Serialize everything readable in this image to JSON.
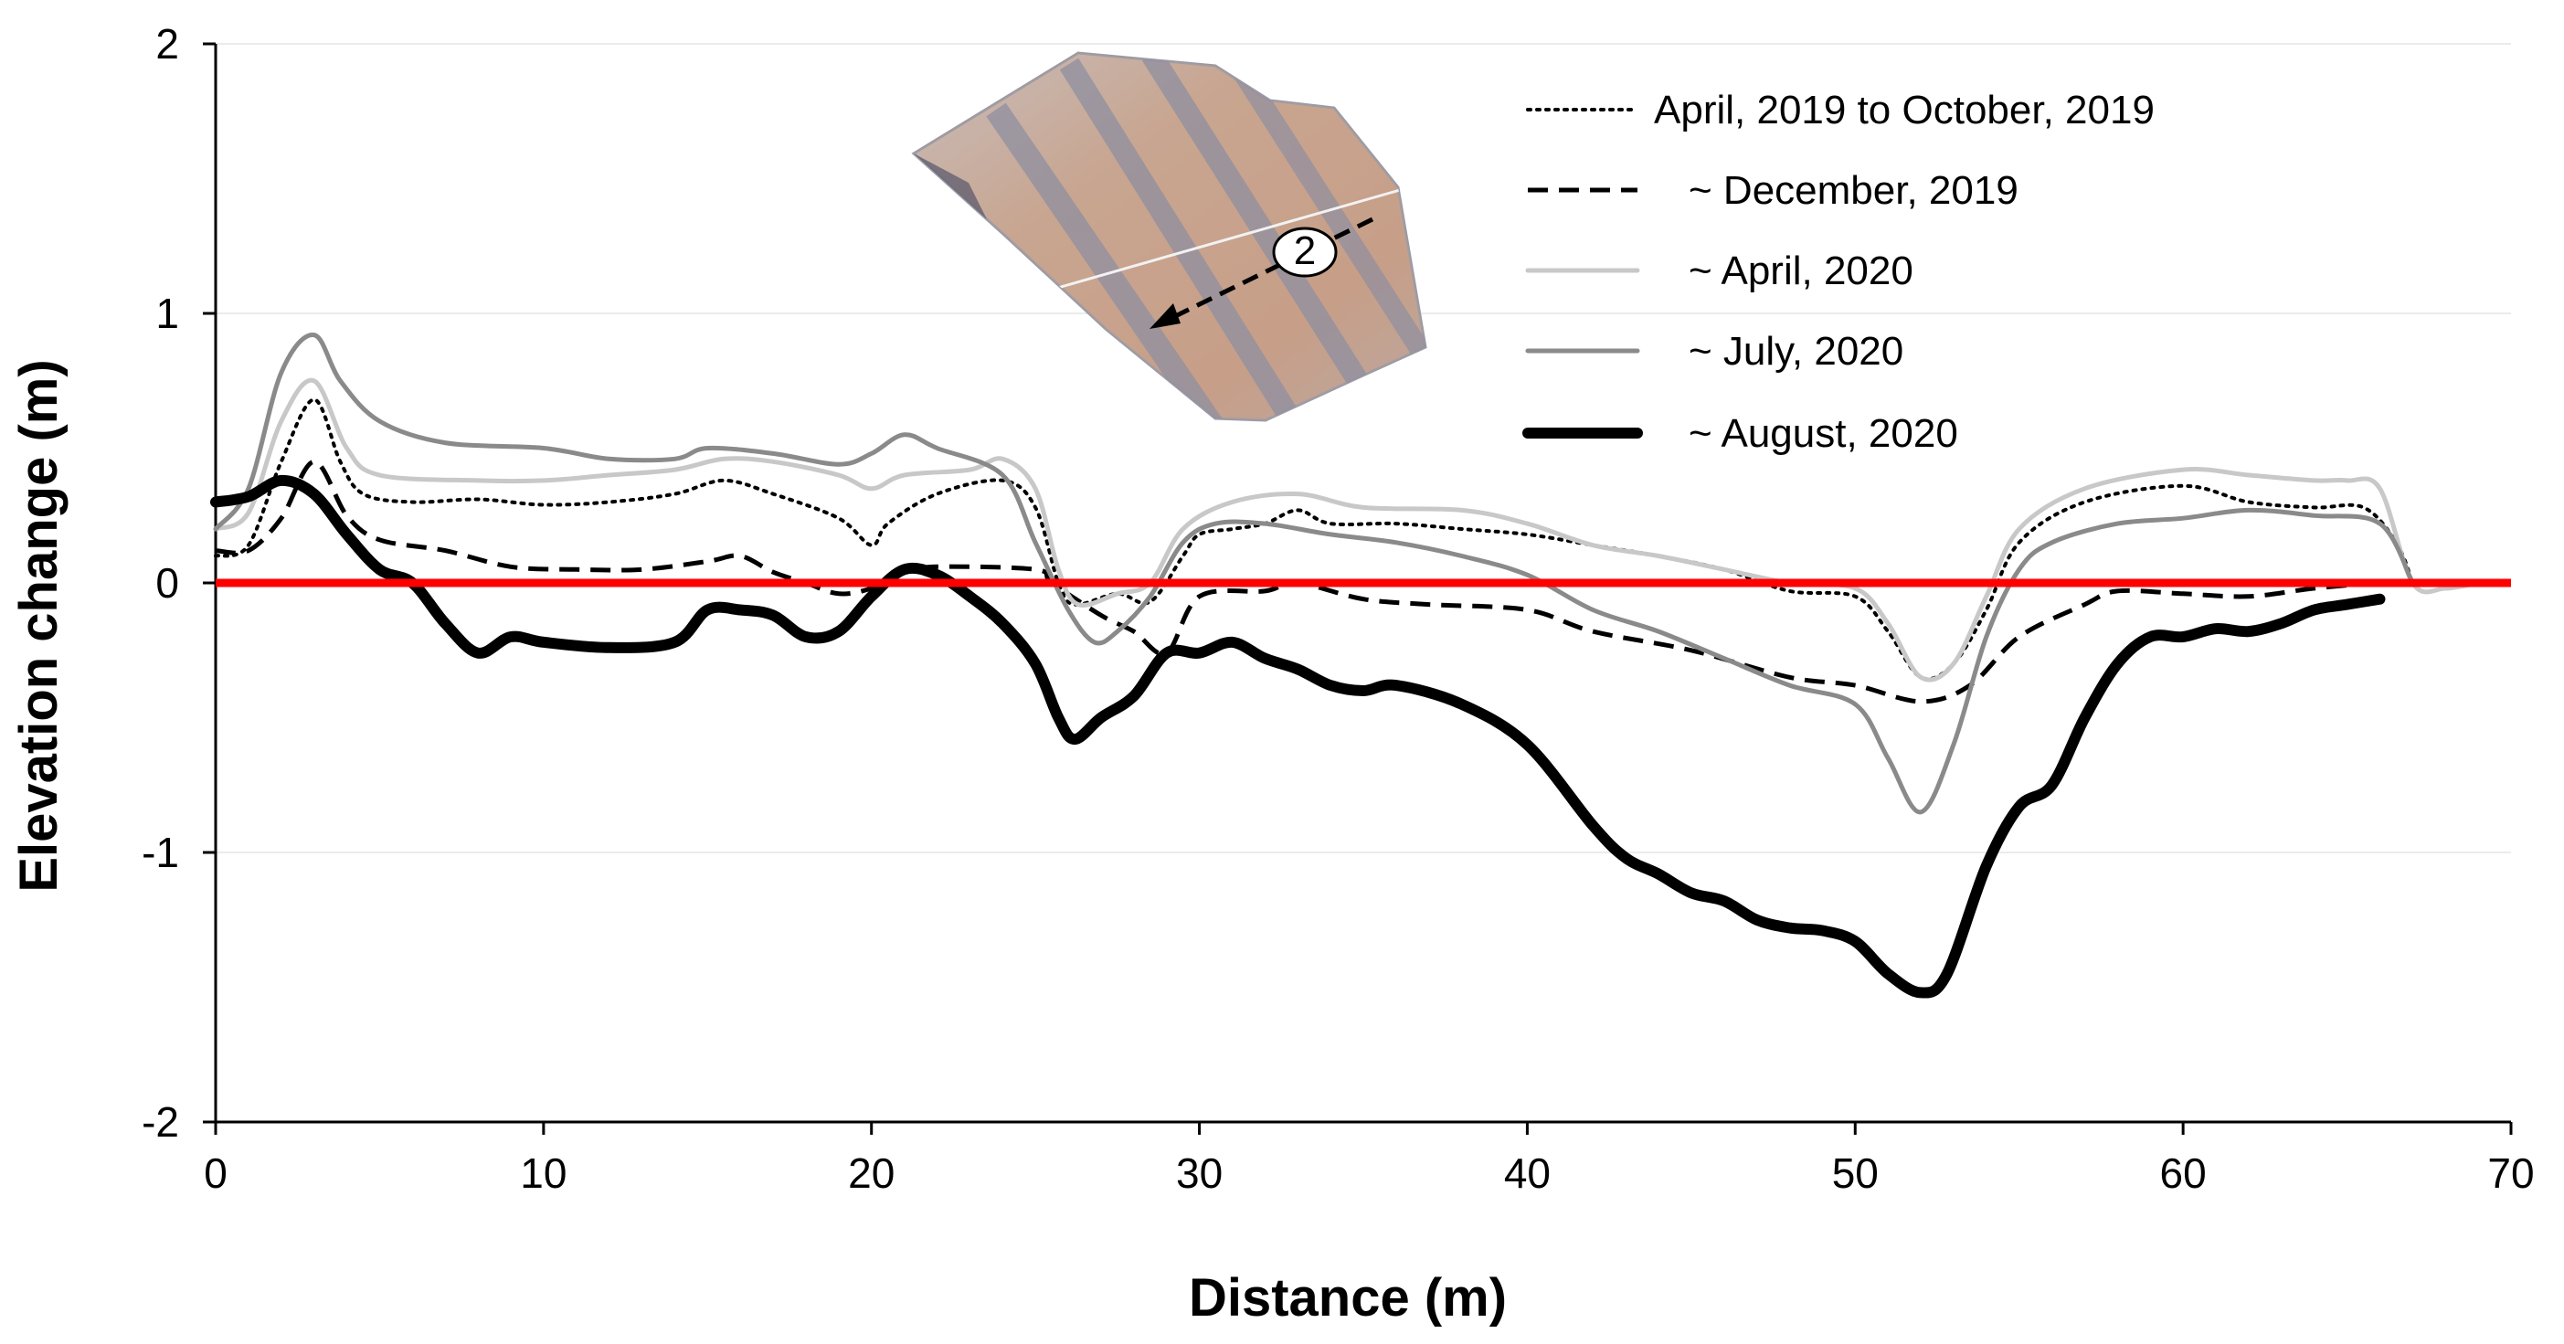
{
  "chart_data": {
    "type": "line",
    "title": "",
    "xlabel": "Distance (m)",
    "ylabel": "Elevation change (m)",
    "xlim": [
      0,
      70
    ],
    "ylim": [
      -2,
      2
    ],
    "xticks": [
      0,
      10,
      20,
      30,
      40,
      50,
      60,
      70
    ],
    "yticks": [
      2,
      1,
      0,
      -1,
      -2
    ],
    "grid": true,
    "legend_position": "top-right",
    "reference_line": {
      "y": 0,
      "color": "#ff0000"
    },
    "inset": {
      "marker_label": "2",
      "description": "aerial photo of study site with transect arrow"
    },
    "series": [
      {
        "name": "April, 2019 to October, 2019",
        "style": "dotted",
        "color": "#000000",
        "points": [
          [
            0,
            0.1
          ],
          [
            1,
            0.14
          ],
          [
            2,
            0.45
          ],
          [
            3,
            0.68
          ],
          [
            3.8,
            0.45
          ],
          [
            4.5,
            0.33
          ],
          [
            6,
            0.3
          ],
          [
            8,
            0.31
          ],
          [
            10,
            0.29
          ],
          [
            12,
            0.3
          ],
          [
            14,
            0.33
          ],
          [
            15.5,
            0.38
          ],
          [
            17,
            0.33
          ],
          [
            19,
            0.24
          ],
          [
            20,
            0.14
          ],
          [
            20.5,
            0.22
          ],
          [
            22,
            0.33
          ],
          [
            24,
            0.38
          ],
          [
            25,
            0.28
          ],
          [
            25.7,
            0.0
          ],
          [
            26.2,
            -0.08
          ],
          [
            27.5,
            -0.04
          ],
          [
            28.5,
            -0.07
          ],
          [
            29.5,
            0.1
          ],
          [
            30,
            0.18
          ],
          [
            31,
            0.2
          ],
          [
            32,
            0.22
          ],
          [
            33,
            0.27
          ],
          [
            34,
            0.22
          ],
          [
            36,
            0.22
          ],
          [
            38,
            0.2
          ],
          [
            40,
            0.18
          ],
          [
            42,
            0.14
          ],
          [
            44,
            0.1
          ],
          [
            46,
            0.05
          ],
          [
            48,
            -0.03
          ],
          [
            50,
            -0.05
          ],
          [
            51,
            -0.18
          ],
          [
            52,
            -0.35
          ],
          [
            53,
            -0.3
          ],
          [
            54,
            -0.1
          ],
          [
            55,
            0.15
          ],
          [
            57,
            0.3
          ],
          [
            60,
            0.36
          ],
          [
            62,
            0.3
          ],
          [
            64,
            0.28
          ],
          [
            65.5,
            0.28
          ],
          [
            66.5,
            0.15
          ],
          [
            67,
            0
          ]
        ]
      },
      {
        "name": "~ December, 2019",
        "style": "dashed",
        "color": "#000000",
        "points": [
          [
            0,
            0.12
          ],
          [
            1,
            0.12
          ],
          [
            2,
            0.24
          ],
          [
            3,
            0.45
          ],
          [
            4,
            0.25
          ],
          [
            5,
            0.16
          ],
          [
            7,
            0.12
          ],
          [
            9,
            0.06
          ],
          [
            11,
            0.05
          ],
          [
            13,
            0.05
          ],
          [
            15,
            0.08
          ],
          [
            16,
            0.1
          ],
          [
            17,
            0.04
          ],
          [
            18,
            0.0
          ],
          [
            19,
            -0.04
          ],
          [
            20,
            -0.02
          ],
          [
            21,
            0.04
          ],
          [
            22,
            0.06
          ],
          [
            25,
            0.05
          ],
          [
            25.5,
            0.0
          ],
          [
            27,
            -0.12
          ],
          [
            28,
            -0.18
          ],
          [
            29,
            -0.26
          ],
          [
            30,
            -0.05
          ],
          [
            32,
            -0.03
          ],
          [
            33,
            0.0
          ],
          [
            35,
            -0.06
          ],
          [
            37,
            -0.08
          ],
          [
            40,
            -0.1
          ],
          [
            42,
            -0.18
          ],
          [
            45,
            -0.25
          ],
          [
            48,
            -0.35
          ],
          [
            50,
            -0.38
          ],
          [
            52,
            -0.44
          ],
          [
            53.5,
            -0.38
          ],
          [
            55,
            -0.2
          ],
          [
            57,
            -0.08
          ],
          [
            58,
            -0.03
          ],
          [
            60,
            -0.04
          ],
          [
            62,
            -0.05
          ],
          [
            64,
            -0.02
          ],
          [
            66,
            0.0
          ],
          [
            67,
            0.0
          ]
        ]
      },
      {
        "name": "~ April, 2020",
        "style": "solid",
        "color": "#c8c8c8",
        "points": [
          [
            0,
            0.2
          ],
          [
            1,
            0.26
          ],
          [
            2,
            0.6
          ],
          [
            3,
            0.75
          ],
          [
            4,
            0.5
          ],
          [
            5,
            0.4
          ],
          [
            8,
            0.38
          ],
          [
            10,
            0.38
          ],
          [
            12,
            0.4
          ],
          [
            14,
            0.42
          ],
          [
            15.5,
            0.46
          ],
          [
            17,
            0.45
          ],
          [
            19,
            0.4
          ],
          [
            20,
            0.35
          ],
          [
            21,
            0.4
          ],
          [
            23,
            0.42
          ],
          [
            24,
            0.46
          ],
          [
            25,
            0.35
          ],
          [
            25.7,
            0.05
          ],
          [
            26.3,
            -0.08
          ],
          [
            27.5,
            -0.04
          ],
          [
            28.5,
            0.0
          ],
          [
            29.5,
            0.2
          ],
          [
            31,
            0.3
          ],
          [
            33,
            0.33
          ],
          [
            35,
            0.28
          ],
          [
            38,
            0.27
          ],
          [
            40,
            0.22
          ],
          [
            42,
            0.14
          ],
          [
            44,
            0.1
          ],
          [
            46,
            0.05
          ],
          [
            48,
            0.0
          ],
          [
            50,
            -0.02
          ],
          [
            51,
            -0.15
          ],
          [
            52,
            -0.35
          ],
          [
            53,
            -0.3
          ],
          [
            54,
            -0.05
          ],
          [
            55,
            0.2
          ],
          [
            57,
            0.35
          ],
          [
            60,
            0.42
          ],
          [
            62,
            0.4
          ],
          [
            64,
            0.38
          ],
          [
            65,
            0.38
          ],
          [
            66,
            0.35
          ],
          [
            67,
            0.0
          ],
          [
            68,
            -0.02
          ],
          [
            69,
            0.0
          ]
        ]
      },
      {
        "name": "~ July, 2020",
        "style": "solid",
        "color": "#8a8a8a",
        "points": [
          [
            0,
            0.2
          ],
          [
            1,
            0.35
          ],
          [
            2,
            0.78
          ],
          [
            3,
            0.92
          ],
          [
            3.8,
            0.75
          ],
          [
            5,
            0.6
          ],
          [
            7,
            0.52
          ],
          [
            10,
            0.5
          ],
          [
            12,
            0.46
          ],
          [
            14,
            0.46
          ],
          [
            15,
            0.5
          ],
          [
            17,
            0.48
          ],
          [
            19,
            0.44
          ],
          [
            20,
            0.48
          ],
          [
            21,
            0.55
          ],
          [
            22,
            0.5
          ],
          [
            24,
            0.4
          ],
          [
            25,
            0.15
          ],
          [
            26,
            -0.1
          ],
          [
            26.8,
            -0.22
          ],
          [
            27.5,
            -0.18
          ],
          [
            28.5,
            -0.05
          ],
          [
            29.5,
            0.15
          ],
          [
            30.5,
            0.22
          ],
          [
            32,
            0.22
          ],
          [
            34,
            0.18
          ],
          [
            36,
            0.15
          ],
          [
            38,
            0.1
          ],
          [
            40,
            0.03
          ],
          [
            42,
            -0.1
          ],
          [
            44,
            -0.18
          ],
          [
            46,
            -0.28
          ],
          [
            48,
            -0.38
          ],
          [
            50,
            -0.45
          ],
          [
            51,
            -0.65
          ],
          [
            52,
            -0.85
          ],
          [
            53,
            -0.6
          ],
          [
            54,
            -0.2
          ],
          [
            55,
            0.05
          ],
          [
            56,
            0.15
          ],
          [
            58,
            0.22
          ],
          [
            60,
            0.24
          ],
          [
            62,
            0.27
          ],
          [
            64,
            0.25
          ],
          [
            66,
            0.22
          ],
          [
            67,
            0.0
          ]
        ]
      },
      {
        "name": "~ August, 2020",
        "style": "thick",
        "color": "#000000",
        "points": [
          [
            0,
            0.3
          ],
          [
            1,
            0.32
          ],
          [
            2,
            0.38
          ],
          [
            3,
            0.33
          ],
          [
            4,
            0.18
          ],
          [
            5,
            0.05
          ],
          [
            6,
            0.0
          ],
          [
            7,
            -0.15
          ],
          [
            8,
            -0.26
          ],
          [
            9,
            -0.2
          ],
          [
            10,
            -0.22
          ],
          [
            12,
            -0.24
          ],
          [
            14,
            -0.22
          ],
          [
            15,
            -0.1
          ],
          [
            16,
            -0.1
          ],
          [
            17,
            -0.12
          ],
          [
            18,
            -0.2
          ],
          [
            19,
            -0.18
          ],
          [
            20,
            -0.05
          ],
          [
            21,
            0.05
          ],
          [
            22,
            0.03
          ],
          [
            23,
            -0.05
          ],
          [
            24,
            -0.15
          ],
          [
            25,
            -0.3
          ],
          [
            25.7,
            -0.5
          ],
          [
            26.2,
            -0.58
          ],
          [
            27,
            -0.5
          ],
          [
            28,
            -0.42
          ],
          [
            29,
            -0.26
          ],
          [
            30,
            -0.26
          ],
          [
            31,
            -0.22
          ],
          [
            32,
            -0.28
          ],
          [
            33,
            -0.32
          ],
          [
            34,
            -0.38
          ],
          [
            35,
            -0.4
          ],
          [
            36,
            -0.38
          ],
          [
            38,
            -0.45
          ],
          [
            40,
            -0.6
          ],
          [
            42,
            -0.9
          ],
          [
            43,
            -1.02
          ],
          [
            44,
            -1.08
          ],
          [
            45,
            -1.15
          ],
          [
            46,
            -1.18
          ],
          [
            47,
            -1.25
          ],
          [
            48,
            -1.28
          ],
          [
            49,
            -1.29
          ],
          [
            50,
            -1.33
          ],
          [
            51,
            -1.45
          ],
          [
            52,
            -1.52
          ],
          [
            52.8,
            -1.45
          ],
          [
            54,
            -1.05
          ],
          [
            55,
            -0.83
          ],
          [
            56,
            -0.75
          ],
          [
            57,
            -0.5
          ],
          [
            58,
            -0.3
          ],
          [
            59,
            -0.2
          ],
          [
            60,
            -0.2
          ],
          [
            61,
            -0.17
          ],
          [
            62,
            -0.18
          ],
          [
            63,
            -0.15
          ],
          [
            64,
            -0.1
          ],
          [
            65,
            -0.08
          ],
          [
            66,
            -0.06
          ]
        ]
      }
    ]
  }
}
